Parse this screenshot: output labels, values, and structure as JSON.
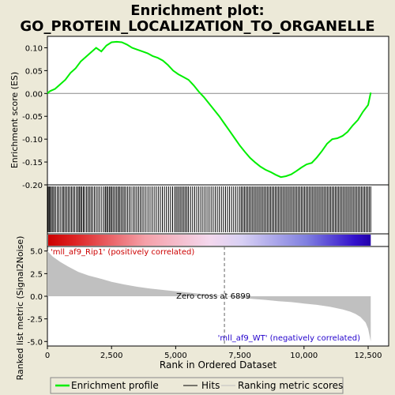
{
  "chart_data": {
    "type": "line",
    "title_line1": "Enrichment plot:",
    "title_line2": "GO_PROTEIN_LOCALIZATION_TO_ORGANELLE",
    "x_axis": {
      "label": "Rank in Ordered Dataset",
      "range": [
        0,
        13300
      ],
      "ticks": [
        0,
        2500,
        5000,
        7500,
        10000,
        12500
      ],
      "tick_labels": [
        "0",
        "2,500",
        "5,000",
        "7,500",
        "10,000",
        "12,500"
      ]
    },
    "top_panel": {
      "ylabel": "Enrichment score (ES)",
      "ylim": [
        -0.2,
        0.125
      ],
      "ticks": [
        0.1,
        0.05,
        0.0,
        -0.05,
        -0.1,
        -0.15,
        -0.2
      ],
      "tick_labels": [
        "0.10",
        "0.05",
        "0.00",
        "-0.05",
        "-0.10",
        "-0.15",
        "-0.20"
      ],
      "es_curve": {
        "x": [
          0,
          100,
          300,
          500,
          700,
          900,
          1100,
          1300,
          1500,
          1700,
          1900,
          2100,
          2300,
          2500,
          2700,
          2900,
          3100,
          3300,
          3500,
          3700,
          3900,
          4100,
          4300,
          4500,
          4700,
          4900,
          5100,
          5300,
          5500,
          5700,
          5900,
          6100,
          6300,
          6500,
          6700,
          6900,
          7100,
          7300,
          7500,
          7700,
          7900,
          8100,
          8300,
          8500,
          8700,
          8900,
          9100,
          9300,
          9500,
          9700,
          9900,
          10100,
          10300,
          10500,
          10700,
          10900,
          11100,
          11300,
          11500,
          11700,
          11900,
          12100,
          12300,
          12500,
          12600
        ],
        "y": [
          0.0,
          0.005,
          0.01,
          0.02,
          0.03,
          0.045,
          0.055,
          0.07,
          0.08,
          0.09,
          0.1,
          0.092,
          0.105,
          0.112,
          0.113,
          0.112,
          0.107,
          0.1,
          0.096,
          0.092,
          0.088,
          0.082,
          0.078,
          0.072,
          0.062,
          0.05,
          0.042,
          0.036,
          0.03,
          0.018,
          0.004,
          -0.008,
          -0.022,
          -0.036,
          -0.05,
          -0.066,
          -0.082,
          -0.098,
          -0.114,
          -0.128,
          -0.141,
          -0.151,
          -0.16,
          -0.167,
          -0.172,
          -0.178,
          -0.183,
          -0.181,
          -0.177,
          -0.17,
          -0.162,
          -0.155,
          -0.152,
          -0.14,
          -0.126,
          -0.11,
          -0.1,
          -0.098,
          -0.093,
          -0.084,
          -0.07,
          -0.058,
          -0.04,
          -0.025,
          0.002
        ]
      }
    },
    "hits_panel": {
      "hit_positions": [
        30,
        70,
        110,
        160,
        210,
        260,
        320,
        390,
        450,
        520,
        590,
        640,
        700,
        760,
        820,
        880,
        940,
        1000,
        1060,
        1130,
        1190,
        1240,
        1290,
        1340,
        1400,
        1450,
        1520,
        1580,
        1640,
        1700,
        1760,
        1830,
        1900,
        1970,
        2040,
        2120,
        2200,
        2260,
        2310,
        2360,
        2420,
        2470,
        2520,
        2580,
        2640,
        2700,
        2760,
        2810,
        2870,
        2930,
        2990,
        3050,
        3120,
        3190,
        3260,
        3340,
        3410,
        3480,
        3550,
        3620,
        3690,
        3760,
        3840,
        3920,
        4000,
        4080,
        4160,
        4240,
        4320,
        4400,
        4480,
        4560,
        4640,
        4720,
        4800,
        4880,
        4960,
        5020,
        5080,
        5140,
        5200,
        5260,
        5320,
        5380,
        5440,
        5500,
        5580,
        5660,
        5740,
        5820,
        5900,
        5980,
        6060,
        6140,
        6220,
        6300,
        6380,
        6460,
        6540,
        6620,
        6700,
        6780,
        6860,
        6940,
        7020,
        7100,
        7180,
        7260,
        7340,
        7420,
        7500,
        7560,
        7620,
        7680,
        7740,
        7800,
        7860,
        7920,
        7980,
        8040,
        8100,
        8160,
        8220,
        8280,
        8340,
        8400,
        8460,
        8520,
        8580,
        8640,
        8700,
        8760,
        8820,
        8880,
        8940,
        9000,
        9060,
        9120,
        9180,
        9240,
        9300,
        9360,
        9420,
        9480,
        9540,
        9600,
        9660,
        9720,
        9780,
        9840,
        9900,
        9960,
        10020,
        10080,
        10140,
        10200,
        10260,
        10320,
        10380,
        10440,
        10500,
        10560,
        10620,
        10680,
        10740,
        10800,
        10860,
        10920,
        10980,
        11040,
        11100,
        11160,
        11220,
        11280,
        11340,
        11400,
        11460,
        11520,
        11580,
        11640,
        11700,
        11760,
        11820,
        11880,
        11940,
        12000,
        12060,
        12120,
        12180,
        12240,
        12300,
        12360,
        12420,
        12480,
        12540,
        12600
      ]
    },
    "heatmap_label_positive": "'mll_af9_Rip1' (positively correlated)",
    "heatmap_label_negative": "'mll_af9_WT' (negatively correlated)",
    "bottom_panel": {
      "ylabel_line1": "Ranked list metric (Signal2Noise)",
      "ylim": [
        -5.5,
        5.5
      ],
      "ticks": [
        5.0,
        2.5,
        0.0,
        -2.5,
        -5.0
      ],
      "tick_labels": [
        "5.0",
        "2.5",
        "0.0",
        "-2.5",
        "-5.0"
      ],
      "zero_cross_label": "Zero cross at 6899",
      "zero_cross_x": 6899,
      "metric_curve": {
        "x": [
          0,
          200,
          500,
          800,
          1200,
          1600,
          2000,
          2500,
          3000,
          3500,
          4000,
          4500,
          5000,
          5500,
          6000,
          6500,
          6899,
          7500,
          8000,
          8500,
          9000,
          9500,
          10000,
          10500,
          11000,
          11500,
          11800,
          12000,
          12200,
          12400,
          12500,
          12600
        ],
        "y": [
          5.0,
          4.4,
          3.8,
          3.3,
          2.7,
          2.3,
          2.0,
          1.6,
          1.3,
          1.05,
          0.85,
          0.7,
          0.55,
          0.4,
          0.25,
          0.1,
          0.0,
          -0.15,
          -0.3,
          -0.4,
          -0.55,
          -0.65,
          -0.8,
          -0.95,
          -1.15,
          -1.45,
          -1.7,
          -1.95,
          -2.3,
          -2.9,
          -3.6,
          -5.0
        ]
      }
    },
    "legend": {
      "items": [
        "Enrichment profile",
        "Hits",
        "Ranking metric scores"
      ],
      "colors": [
        "#00ee00",
        "#000000",
        "#c0c0c0"
      ],
      "placement": "bottom"
    },
    "colors": {
      "background": "#ece9d8",
      "plot_bg": "#ffffff",
      "es_line": "#00ee00",
      "metric_fill": "#c0c0c0",
      "positive": "#cc0000",
      "negative": "#2200cc"
    }
  }
}
